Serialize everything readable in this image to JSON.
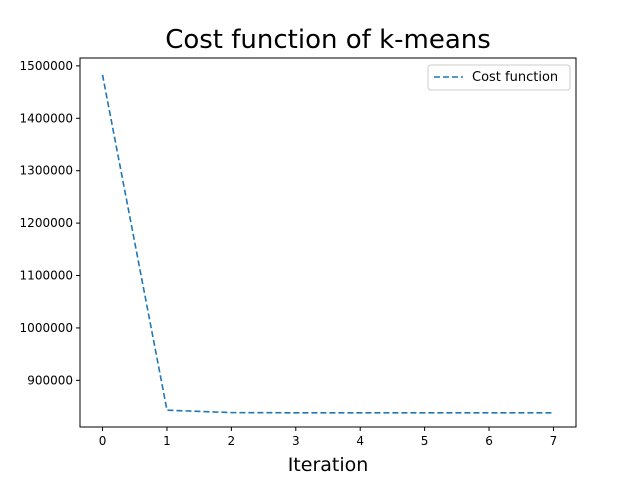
{
  "chart_data": {
    "type": "line",
    "title": "Cost function of k-means",
    "xlabel": "Iteration",
    "ylabel": "",
    "x": [
      0,
      1,
      2,
      3,
      4,
      5,
      6,
      7
    ],
    "series": [
      {
        "name": "Cost function",
        "values": [
          1483000,
          843000,
          838500,
          838000,
          838000,
          838000,
          838000,
          838000
        ],
        "color": "#1f77b4",
        "style": "dashed"
      }
    ],
    "xlim": [
      -0.35,
      7.35
    ],
    "ylim": [
      811000,
      1515000
    ],
    "xticks": [
      0,
      1,
      2,
      3,
      4,
      5,
      6,
      7
    ],
    "yticks": [
      900000,
      1000000,
      1100000,
      1200000,
      1300000,
      1400000,
      1500000
    ],
    "grid": false,
    "legend_position": "top-right"
  }
}
